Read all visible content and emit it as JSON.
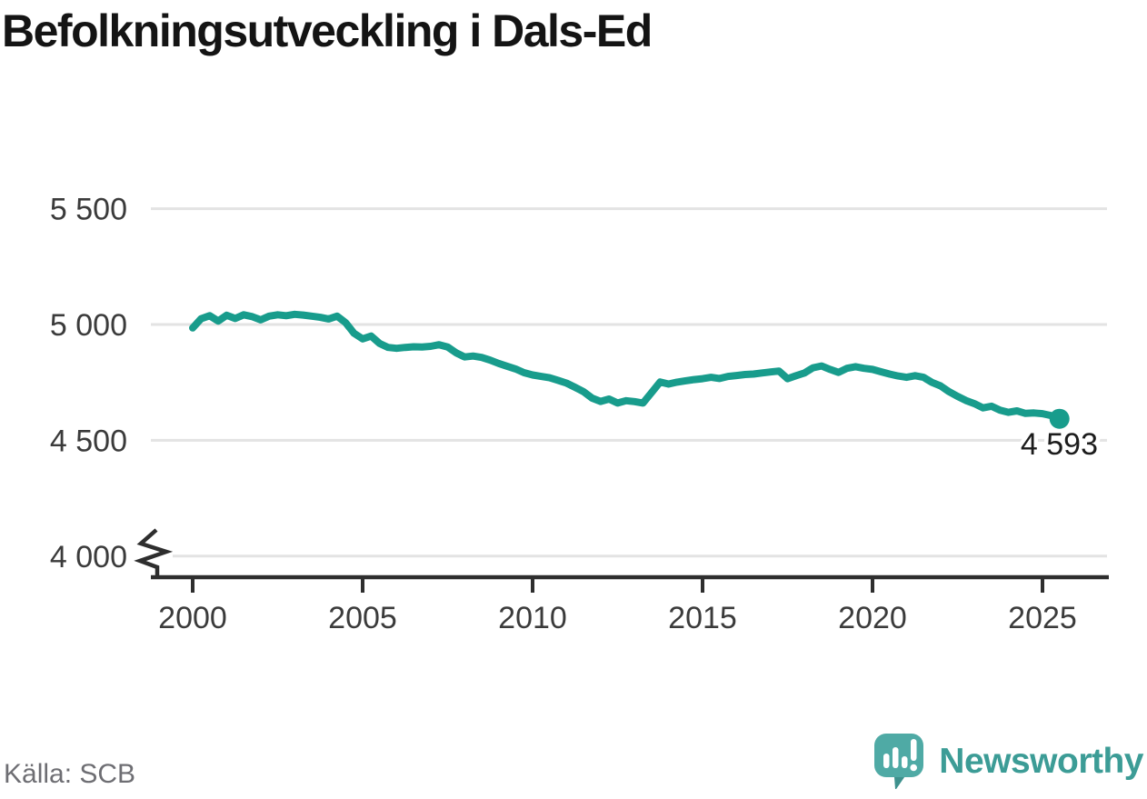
{
  "title": "Befolkningsutveckling i Dals-Ed",
  "source": "Källa: SCB",
  "logo": {
    "name": "Newsworthy"
  },
  "chart_data": {
    "type": "line",
    "title": "Befolkningsutveckling i Dals-Ed",
    "series_name": "Folkmängd i Dals-Ed",
    "xlabel": "",
    "ylabel": "",
    "line_color": "#189c8c",
    "grid": "horizontal",
    "axis_break_below": 4000,
    "ylim": [
      4000,
      5500
    ],
    "xlim": [
      2000,
      2026
    ],
    "end_label": "4 593",
    "end_value": 4593,
    "yticks": [
      {
        "value": 5500,
        "label": "5 500"
      },
      {
        "value": 5000,
        "label": "5 000"
      },
      {
        "value": 4500,
        "label": "4 500"
      },
      {
        "value": 4000,
        "label": "4 000"
      }
    ],
    "xticks": [
      {
        "value": 2000,
        "label": "2000"
      },
      {
        "value": 2005,
        "label": "2005"
      },
      {
        "value": 2010,
        "label": "2010"
      },
      {
        "value": 2015,
        "label": "2015"
      },
      {
        "value": 2020,
        "label": "2020"
      },
      {
        "value": 2025,
        "label": "2025"
      }
    ],
    "x_start": 2000.0,
    "x_step": 0.25,
    "y": [
      4985,
      5025,
      5038,
      5015,
      5040,
      5026,
      5042,
      5034,
      5020,
      5036,
      5042,
      5038,
      5044,
      5041,
      5036,
      5031,
      5024,
      5036,
      5008,
      4962,
      4938,
      4950,
      4918,
      4901,
      4897,
      4901,
      4904,
      4903,
      4906,
      4913,
      4903,
      4878,
      4860,
      4864,
      4858,
      4846,
      4832,
      4820,
      4808,
      4792,
      4782,
      4776,
      4770,
      4759,
      4747,
      4729,
      4710,
      4682,
      4668,
      4678,
      4661,
      4671,
      4667,
      4661,
      4706,
      4752,
      4743,
      4751,
      4757,
      4762,
      4766,
      4772,
      4767,
      4776,
      4780,
      4784,
      4786,
      4791,
      4795,
      4799,
      4766,
      4779,
      4791,
      4813,
      4821,
      4806,
      4793,
      4811,
      4818,
      4811,
      4806,
      4796,
      4786,
      4778,
      4772,
      4779,
      4772,
      4750,
      4735,
      4710,
      4690,
      4672,
      4658,
      4640,
      4647,
      4630,
      4621,
      4627,
      4616,
      4618,
      4615,
      4607,
      4593
    ]
  }
}
